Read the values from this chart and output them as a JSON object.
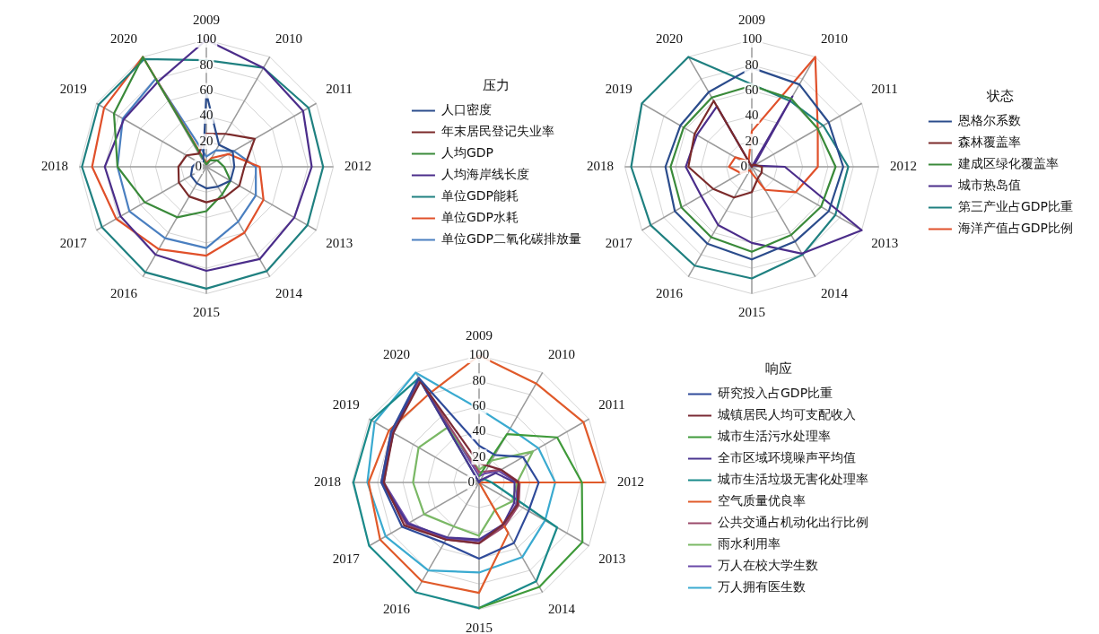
{
  "chart_data": [
    {
      "type": "radar",
      "legend_title": "压力",
      "legend": "right",
      "grid": true,
      "marker": "none",
      "line_style": "solid",
      "ylim": [
        0,
        100
      ],
      "yticks": [
        0,
        20,
        40,
        60,
        80,
        100
      ],
      "categories": [
        "2009",
        "2010",
        "2011",
        "2012",
        "2013",
        "2014",
        "2015",
        "2016",
        "2017",
        "2018",
        "2019",
        "2020"
      ],
      "series": [
        {
          "name": "人口密度",
          "color": "#2b4c8c",
          "values": [
            58,
            20,
            24,
            22,
            22,
            18,
            17,
            15,
            14,
            11,
            8,
            5
          ]
        },
        {
          "name": "年末居民登记失业率",
          "color": "#7b2a2a",
          "values": [
            26,
            30,
            44,
            30,
            30,
            28,
            28,
            27,
            25,
            22,
            18,
            12
          ]
        },
        {
          "name": "人均GDP",
          "color": "#3a8a3a",
          "values": [
            2,
            6,
            10,
            14,
            22,
            25,
            35,
            46,
            56,
            70,
            84,
            100
          ]
        },
        {
          "name": "人均海岸线长度",
          "color": "#4b2d8a",
          "values": [
            100,
            90,
            88,
            83,
            80,
            84,
            82,
            80,
            78,
            80,
            75,
            77
          ]
        },
        {
          "name": "单位GDP能耗",
          "color": "#1f8080",
          "values": [
            84,
            90,
            93,
            92,
            92,
            95,
            96,
            96,
            95,
            98,
            98,
            98
          ]
        },
        {
          "name": "单位GDP水耗",
          "color": "#e0502a",
          "values": [
            3,
            8,
            20,
            42,
            52,
            60,
            70,
            75,
            82,
            90,
            93,
            100
          ]
        },
        {
          "name": "单位GDP二氧化碳排放量",
          "color": "#4a7fc0",
          "values": [
            8,
            15,
            25,
            39,
            45,
            50,
            64,
            65,
            70,
            70,
            76,
            80
          ]
        }
      ]
    },
    {
      "type": "radar",
      "legend_title": "状态",
      "legend": "right",
      "grid": true,
      "marker": "none",
      "line_style": "solid",
      "ylim": [
        0,
        100
      ],
      "yticks": [
        0,
        20,
        40,
        60,
        80,
        100
      ],
      "categories": [
        "2009",
        "2010",
        "2011",
        "2012",
        "2013",
        "2014",
        "2015",
        "2016",
        "2017",
        "2018",
        "2019",
        "2020"
      ],
      "series": [
        {
          "name": "恩格尔系数",
          "color": "#2b4c8c",
          "values": [
            78,
            75,
            70,
            72,
            70,
            68,
            73,
            70,
            70,
            68,
            65,
            68
          ]
        },
        {
          "name": "森林覆盖率",
          "color": "#7b2a2a",
          "values": [
            0,
            2,
            3,
            8,
            9,
            10,
            20,
            28,
            35,
            50,
            52,
            60
          ]
        },
        {
          "name": "建成区绿化覆盖率",
          "color": "#3a8a3a",
          "values": [
            64,
            62,
            60,
            66,
            63,
            62,
            67,
            64,
            64,
            64,
            62,
            63
          ]
        },
        {
          "name": "城市热岛值",
          "color": "#4b2d8a",
          "values": [
            0,
            64,
            2,
            26,
            100,
            79,
            60,
            53,
            46,
            52,
            50,
            55
          ]
        },
        {
          "name": "第三产业占GDP比重",
          "color": "#1f8080",
          "values": [
            65,
            60,
            65,
            76,
            76,
            80,
            88,
            90,
            92,
            95,
            100,
            100
          ]
        },
        {
          "name": "海洋产值占GDP比例",
          "color": "#e0502a",
          "values": [
            28,
            100,
            60,
            52,
            40,
            21,
            5,
            3,
            10,
            18,
            15,
            5
          ]
        }
      ]
    },
    {
      "type": "radar",
      "legend_title": "响应",
      "legend": "right",
      "grid": true,
      "marker": "none",
      "line_style": "solid",
      "ylim": [
        0,
        100
      ],
      "yticks": [
        0,
        20,
        40,
        60,
        80,
        100
      ],
      "categories": [
        "2009",
        "2010",
        "2011",
        "2012",
        "2013",
        "2014",
        "2015",
        "2016",
        "2017",
        "2018",
        "2019",
        "2020"
      ],
      "series": [
        {
          "name": "研究投入占GDP比重",
          "color": "#2f4b9a",
          "values": [
            29,
            25,
            40,
            47,
            45,
            55,
            60,
            55,
            70,
            77,
            80,
            95
          ]
        },
        {
          "name": "城镇居民人均可支配收入",
          "color": "#7a2a35",
          "values": [
            15,
            15,
            20,
            31,
            35,
            38,
            48,
            52,
            68,
            75,
            78,
            92
          ]
        },
        {
          "name": "城市生活污水处理率",
          "color": "#3f9a3a",
          "values": [
            5,
            44,
            71,
            81,
            94,
            95,
            99,
            null,
            null,
            null,
            null,
            null
          ]
        },
        {
          "name": "全市区域环境噪声平均值",
          "color": "#4a3590",
          "values": [
            0,
            2,
            15,
            28,
            32,
            38,
            45,
            50,
            65,
            76,
            78,
            95
          ]
        },
        {
          "name": "城市生活垃圾无害化处理率",
          "color": "#1a8a8a",
          "values": [
            0,
            2,
            5,
            10,
            71,
            90,
            99,
            100,
            100,
            99,
            98,
            95
          ]
        },
        {
          "name": "空气质量优良率",
          "color": "#e05a2a",
          "values": [
            100,
            90,
            95,
            98,
            0,
            46,
            87,
            90,
            90,
            87,
            82,
            80
          ]
        },
        {
          "name": "公共交通占机动化出行比例",
          "color": "#9a4a6a",
          "values": [
            8,
            10,
            20,
            32,
            36,
            40,
            48,
            52,
            66,
            77,
            80,
            93
          ]
        },
        {
          "name": "雨水利用率",
          "color": "#7ab865",
          "values": [
            10,
            20,
            49,
            30,
            30,
            25,
            42,
            40,
            50,
            52,
            55,
            50
          ]
        },
        {
          "name": "万人在校大学生数",
          "color": "#6a4aa8",
          "values": [
            5,
            8,
            18,
            30,
            34,
            39,
            46,
            51,
            64,
            75,
            79,
            94
          ]
        },
        {
          "name": "万人拥有医生数",
          "color": "#3aaad0",
          "values": [
            58,
            49,
            54,
            60,
            60,
            68,
            71,
            80,
            85,
            88,
            95,
            100
          ]
        }
      ]
    }
  ]
}
